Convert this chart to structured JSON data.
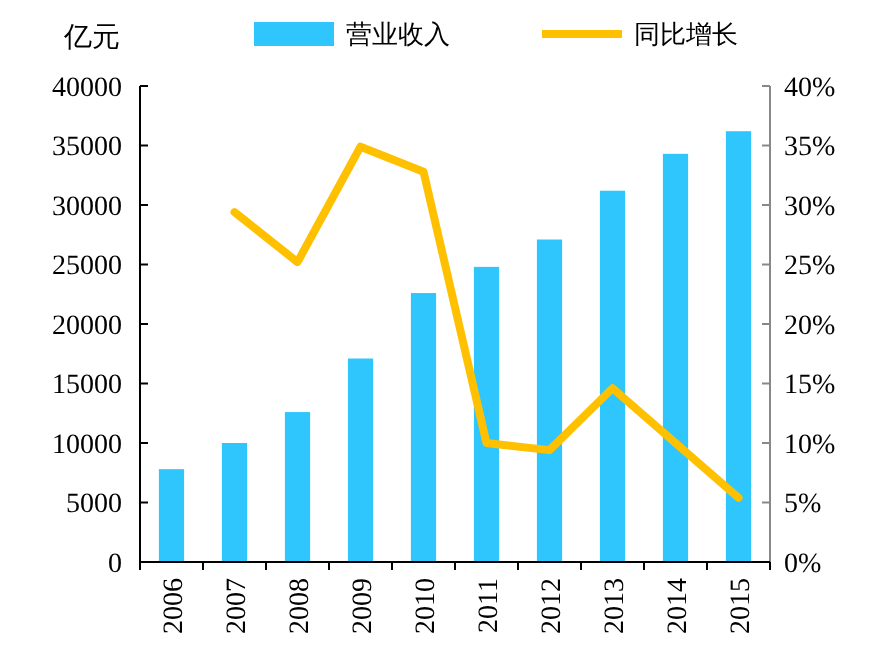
{
  "chart_data": {
    "type": "bar",
    "ylabel": "亿元",
    "categories": [
      "2006",
      "2007",
      "2008",
      "2009",
      "2010",
      "2011",
      "2012",
      "2013",
      "2014",
      "2015"
    ],
    "series": [
      {
        "name": "营业收入",
        "color": "#2ec6fc",
        "values": [
          7800,
          10000,
          12600,
          17100,
          22600,
          24800,
          27100,
          31200,
          34300,
          36200
        ]
      },
      {
        "name": "同比增长",
        "type": "line",
        "axis": "y2",
        "color": "#ffc000",
        "values": [
          null,
          29.4,
          25.2,
          34.9,
          32.8,
          10.0,
          9.4,
          14.6,
          10.0,
          5.4
        ]
      }
    ],
    "ylim": [
      0,
      40000
    ],
    "yticks": [
      0,
      5000,
      10000,
      15000,
      20000,
      25000,
      30000,
      35000,
      40000
    ],
    "y2lim": [
      0,
      40
    ],
    "y2ticks": [
      {
        "value": 0,
        "label": "0%"
      },
      {
        "value": 5,
        "label": "5%"
      },
      {
        "value": 10,
        "label": "10%"
      },
      {
        "value": 15,
        "label": "15%"
      },
      {
        "value": 20,
        "label": "20%"
      },
      {
        "value": 25,
        "label": "25%"
      },
      {
        "value": 30,
        "label": "30%"
      },
      {
        "value": 35,
        "label": "35%"
      },
      {
        "value": 40,
        "label": "40%"
      }
    ],
    "legend": "top",
    "grid": false,
    "line_style": "solid",
    "marker": "none"
  }
}
